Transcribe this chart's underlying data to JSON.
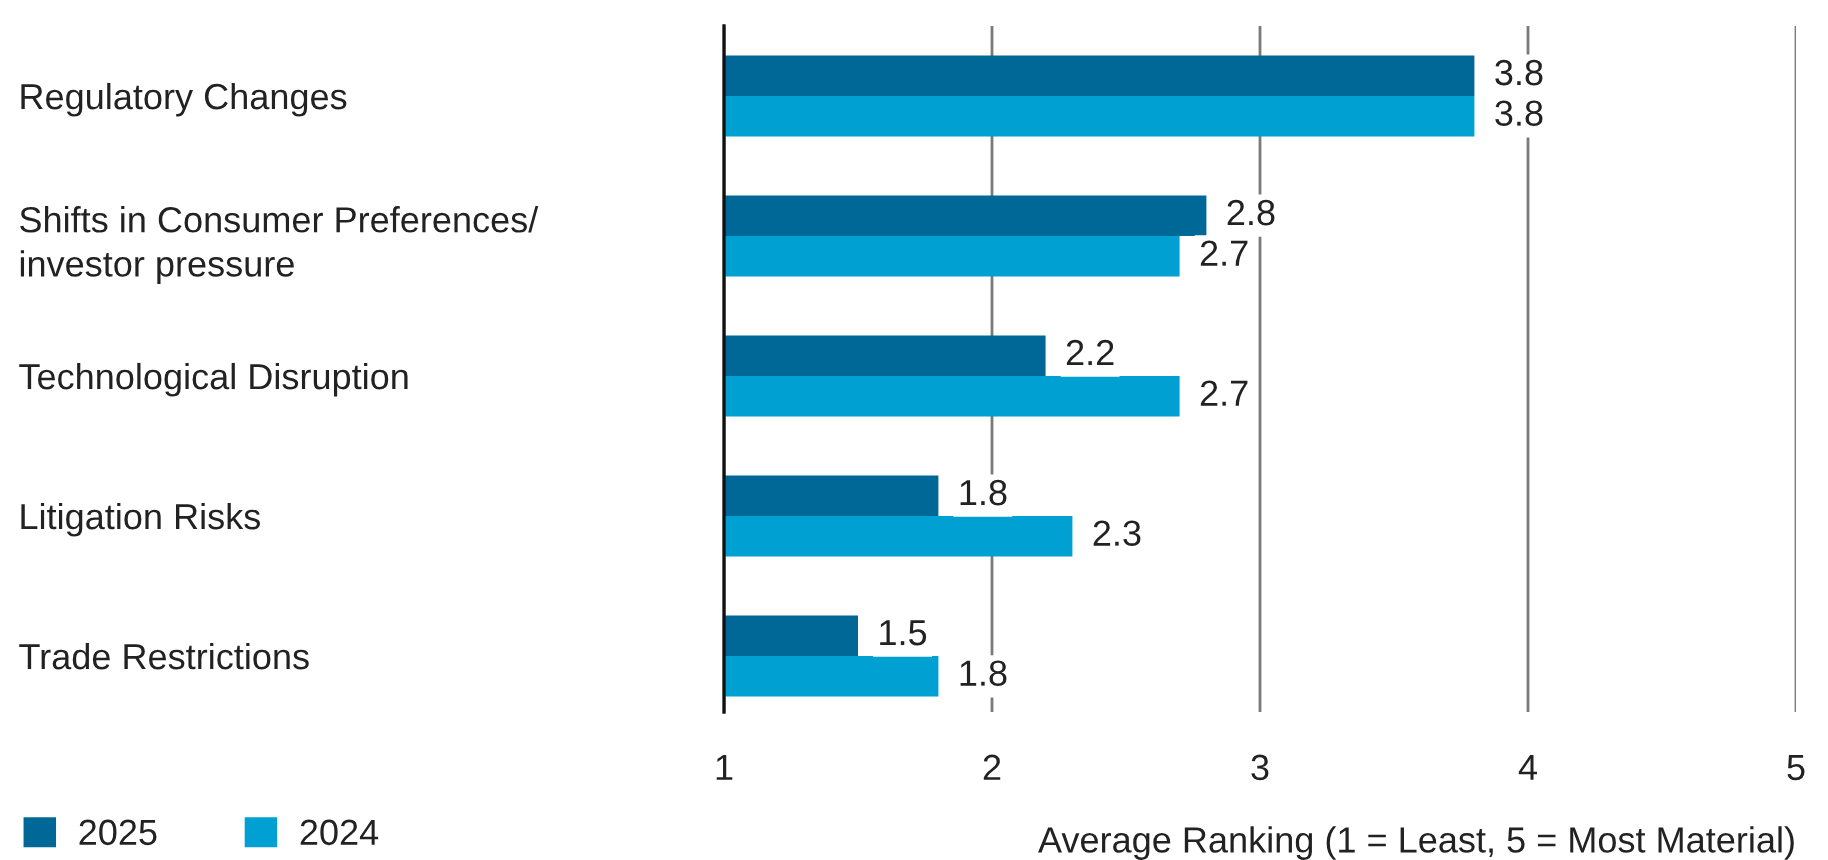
{
  "chart_data": {
    "type": "bar",
    "orientation": "horizontal",
    "categories": [
      "Regulatory Changes",
      "Shifts in Consumer Preferences/\ninvestor pressure",
      "Technological Disruption",
      "Litigation Risks",
      "Trade Restrictions"
    ],
    "series": [
      {
        "name": "2025",
        "color": "#006896",
        "values": [
          3.8,
          2.8,
          2.2,
          1.8,
          1.5
        ]
      },
      {
        "name": "2024",
        "color": "#00a0d3",
        "values": [
          3.8,
          2.7,
          2.7,
          2.3,
          1.8
        ]
      }
    ],
    "xlim": [
      1,
      5
    ],
    "xticks": [
      1,
      2,
      3,
      4,
      5
    ],
    "xlabel": "Average Ranking (1 = Least, 5 = Most Material)",
    "grid": "x",
    "legend": "bottom left",
    "data_labels": true
  }
}
